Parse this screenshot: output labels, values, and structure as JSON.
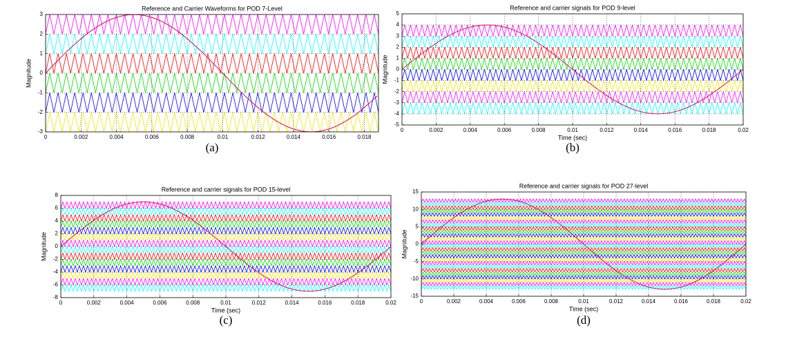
{
  "chart_data": [
    {
      "type": "line",
      "title": "Reference and Carrier Waveforms for POD 7-Level",
      "ylabel": "Magnitude",
      "caption": "(a)",
      "xlim": [
        0,
        0.0188
      ],
      "ylim": [
        -3,
        3
      ],
      "xticks": [
        0,
        0.002,
        0.004,
        0.006,
        0.008,
        0.01,
        0.012,
        0.014,
        0.016,
        0.018
      ],
      "yticks": [
        -3,
        -2,
        -1,
        0,
        1,
        2,
        3
      ],
      "grid": true,
      "x": [
        0,
        0.00125,
        0.0025,
        0.00375,
        0.005,
        0.00625,
        0.0075,
        0.00875,
        0.01,
        0.01125,
        0.0125,
        0.01375,
        0.015,
        0.01625,
        0.0175,
        0.01875
      ],
      "series": [
        {
          "color": "#d0105a",
          "values": [
            0,
            1.15,
            2.12,
            2.77,
            3,
            2.77,
            2.12,
            1.15,
            0,
            -1.15,
            -2.12,
            -2.77,
            -3,
            -2.77,
            -2.12,
            -1.15
          ]
        }
      ],
      "carriers": [
        {
          "color": "#ff00ff",
          "values": [
            2,
            3
          ]
        },
        {
          "color": "#00ffff",
          "values": [
            1,
            2
          ]
        },
        {
          "color": "#ff0000",
          "values": [
            0,
            1
          ]
        },
        {
          "color": "#00dd00",
          "values": [
            -1,
            0
          ]
        },
        {
          "color": "#0000ff",
          "values": [
            -2,
            -1
          ]
        },
        {
          "color": "#f2e600",
          "values": [
            -3,
            -2
          ]
        }
      ]
    },
    {
      "type": "line",
      "title": "Reference and carrier signals for POD 9-level",
      "xlabel": "Time (sec)",
      "ylabel": "Magnitude",
      "caption": "(b)",
      "xlim": [
        0,
        0.02
      ],
      "ylim": [
        -5,
        5
      ],
      "xticks": [
        0,
        0.002,
        0.004,
        0.006,
        0.008,
        0.01,
        0.012,
        0.014,
        0.016,
        0.018,
        0.02
      ],
      "yticks": [
        -5,
        -4,
        -3,
        -2,
        -1,
        0,
        1,
        2,
        3,
        4,
        5
      ],
      "grid": true,
      "x": [
        0,
        0.00125,
        0.0025,
        0.00375,
        0.005,
        0.00625,
        0.0075,
        0.00875,
        0.01,
        0.01125,
        0.0125,
        0.01375,
        0.015,
        0.01625,
        0.0175,
        0.01875,
        0.02
      ],
      "series": [
        {
          "color": "#d0105a",
          "values": [
            0,
            1.53,
            2.83,
            3.7,
            4,
            3.7,
            2.83,
            1.53,
            0,
            -1.53,
            -2.83,
            -3.7,
            -4,
            -3.7,
            -2.83,
            -1.53,
            0
          ]
        }
      ],
      "carriers": [
        {
          "color": "#ff00ff",
          "values": [
            3,
            4
          ]
        },
        {
          "color": "#00ffff",
          "values": [
            2,
            3
          ]
        },
        {
          "color": "#ff0000",
          "values": [
            1,
            2
          ]
        },
        {
          "color": "#00dd00",
          "values": [
            0,
            1
          ]
        },
        {
          "color": "#0000ff",
          "values": [
            -1,
            0
          ]
        },
        {
          "color": "#f2e600",
          "values": [
            -2,
            -1
          ]
        },
        {
          "color": "#ff00ff",
          "values": [
            -3,
            -2
          ]
        },
        {
          "color": "#00ffff",
          "values": [
            -4,
            -3
          ]
        }
      ]
    },
    {
      "type": "line",
      "title": "Reference and carrier signals for POD 15-level",
      "xlabel": "Time (sec)",
      "ylabel": "Magnitude",
      "caption": "(c)",
      "xlim": [
        0,
        0.02
      ],
      "ylim": [
        -8,
        8
      ],
      "xticks": [
        0,
        0.002,
        0.004,
        0.006,
        0.008,
        0.01,
        0.012,
        0.014,
        0.016,
        0.018,
        0.02
      ],
      "yticks": [
        -8,
        -6,
        -4,
        -2,
        0,
        2,
        4,
        6,
        8
      ],
      "grid": true,
      "x": [
        0,
        0.00125,
        0.0025,
        0.00375,
        0.005,
        0.00625,
        0.0075,
        0.00875,
        0.01,
        0.01125,
        0.0125,
        0.01375,
        0.015,
        0.01625,
        0.0175,
        0.01875,
        0.02
      ],
      "series": [
        {
          "color": "#d0105a",
          "values": [
            0,
            2.68,
            4.95,
            6.47,
            7,
            6.47,
            4.95,
            2.68,
            0,
            -2.68,
            -4.95,
            -6.47,
            -7,
            -6.47,
            -4.95,
            -2.68,
            0
          ]
        }
      ],
      "carriers": [
        {
          "color": "#ff00ff",
          "values": [
            6,
            7
          ]
        },
        {
          "color": "#00ffff",
          "values": [
            5,
            6
          ]
        },
        {
          "color": "#ff0000",
          "values": [
            4,
            5
          ]
        },
        {
          "color": "#00dd00",
          "values": [
            3,
            4
          ]
        },
        {
          "color": "#0000ff",
          "values": [
            2,
            3
          ]
        },
        {
          "color": "#f2e600",
          "values": [
            1,
            2
          ]
        },
        {
          "color": "#ff00ff",
          "values": [
            0,
            1
          ]
        },
        {
          "color": "#00ffff",
          "values": [
            -1,
            0
          ]
        },
        {
          "color": "#ff0000",
          "values": [
            -2,
            -1
          ]
        },
        {
          "color": "#00dd00",
          "values": [
            -3,
            -2
          ]
        },
        {
          "color": "#0000ff",
          "values": [
            -4,
            -3
          ]
        },
        {
          "color": "#f2e600",
          "values": [
            -5,
            -4
          ]
        },
        {
          "color": "#ff00ff",
          "values": [
            -6,
            -5
          ]
        },
        {
          "color": "#00ffff",
          "values": [
            -7,
            -6
          ]
        }
      ]
    },
    {
      "type": "line",
      "title": "Reference and carrier signals for POD 27-level",
      "xlabel": "Time (sec)",
      "ylabel": "Magnitude",
      "caption": "(d)",
      "xlim": [
        0,
        0.02
      ],
      "ylim": [
        -15,
        15
      ],
      "xticks": [
        0,
        0.002,
        0.004,
        0.006,
        0.008,
        0.01,
        0.012,
        0.014,
        0.016,
        0.018,
        0.02
      ],
      "yticks": [
        -15,
        -10,
        -5,
        0,
        5,
        10,
        15
      ],
      "grid": true,
      "x": [
        0,
        0.00125,
        0.0025,
        0.00375,
        0.005,
        0.00625,
        0.0075,
        0.00875,
        0.01,
        0.01125,
        0.0125,
        0.01375,
        0.015,
        0.01625,
        0.0175,
        0.01875,
        0.02
      ],
      "series": [
        {
          "color": "#d0105a",
          "values": [
            0,
            4.97,
            9.19,
            12.01,
            13,
            12.01,
            9.19,
            4.97,
            0,
            -4.97,
            -9.19,
            -12.01,
            -13,
            -12.01,
            -9.19,
            -4.97,
            0
          ]
        }
      ],
      "carriers": [
        {
          "color": "#ff00ff",
          "values": [
            12,
            13
          ]
        },
        {
          "color": "#00ffff",
          "values": [
            11,
            12
          ]
        },
        {
          "color": "#ff0000",
          "values": [
            10,
            11
          ]
        },
        {
          "color": "#00dd00",
          "values": [
            9,
            10
          ]
        },
        {
          "color": "#0000ff",
          "values": [
            8,
            9
          ]
        },
        {
          "color": "#f2e600",
          "values": [
            7,
            8
          ]
        },
        {
          "color": "#ff00ff",
          "values": [
            6,
            7
          ]
        },
        {
          "color": "#00ffff",
          "values": [
            5,
            6
          ]
        },
        {
          "color": "#ff0000",
          "values": [
            4,
            5
          ]
        },
        {
          "color": "#00dd00",
          "values": [
            3,
            4
          ]
        },
        {
          "color": "#0000ff",
          "values": [
            2,
            3
          ]
        },
        {
          "color": "#f2e600",
          "values": [
            1,
            2
          ]
        },
        {
          "color": "#ff00ff",
          "values": [
            0,
            1
          ]
        },
        {
          "color": "#00ffff",
          "values": [
            -1,
            0
          ]
        },
        {
          "color": "#ff0000",
          "values": [
            -2,
            -1
          ]
        },
        {
          "color": "#00dd00",
          "values": [
            -3,
            -2
          ]
        },
        {
          "color": "#0000ff",
          "values": [
            -4,
            -3
          ]
        },
        {
          "color": "#f2e600",
          "values": [
            -5,
            -4
          ]
        },
        {
          "color": "#ff00ff",
          "values": [
            -6,
            -5
          ]
        },
        {
          "color": "#00ffff",
          "values": [
            -7,
            -6
          ]
        },
        {
          "color": "#ff0000",
          "values": [
            -8,
            -7
          ]
        },
        {
          "color": "#00dd00",
          "values": [
            -9,
            -8
          ]
        },
        {
          "color": "#0000ff",
          "values": [
            -10,
            -9
          ]
        },
        {
          "color": "#f2e600",
          "values": [
            -11,
            -10
          ]
        },
        {
          "color": "#ff00ff",
          "values": [
            -12,
            -11
          ]
        },
        {
          "color": "#00ffff",
          "values": [
            -13,
            -12
          ]
        }
      ]
    }
  ]
}
